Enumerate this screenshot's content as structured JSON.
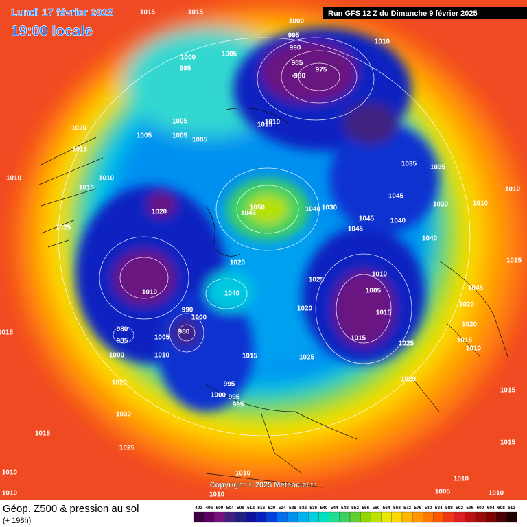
{
  "header": {
    "date": "Lundi 17 février 2025",
    "time": "19:00 locale",
    "run": "Run GFS 12 Z du Dimanche 9 février 2025"
  },
  "copyright": "Copyright © 2025 Meteociel.fr",
  "footer": {
    "title": "Géop. Z500 & pression au sol",
    "lead": "(+ 198h)"
  },
  "scale": {
    "labels": [
      "492",
      "496",
      "500",
      "504",
      "508",
      "512",
      "516",
      "520",
      "524",
      "528",
      "532",
      "536",
      "540",
      "544",
      "548",
      "552",
      "556",
      "560",
      "564",
      "568",
      "572",
      "576",
      "580",
      "584",
      "588",
      "592",
      "596",
      "600",
      "604",
      "608",
      "612"
    ],
    "colors": [
      "#3a0040",
      "#5a0060",
      "#7a1080",
      "#402080",
      "#202080",
      "#1010a0",
      "#0020c0",
      "#0040e0",
      "#0070f0",
      "#0090f0",
      "#00b0f0",
      "#00d0e0",
      "#00e0c0",
      "#20e090",
      "#40d060",
      "#60d030",
      "#90d800",
      "#c0e000",
      "#e8e800",
      "#ffd800",
      "#ffb800",
      "#ff9800",
      "#ff7800",
      "#ff5800",
      "#f03818",
      "#e02020",
      "#c01010",
      "#a00808",
      "#800000",
      "#500000",
      "#200000"
    ]
  },
  "isobar_labels": [
    "1015",
    "1015",
    "1000",
    "995",
    "990",
    "1010",
    "1000",
    "1005",
    "995",
    "985",
    "975",
    "-980",
    "1005",
    "1015",
    "1010",
    "1020",
    "1005",
    "1005",
    "1005",
    "1015",
    "1035",
    "1035",
    "1010",
    "1010",
    "1010",
    "1045",
    "1030",
    "1010",
    "1010",
    "1050",
    "1045",
    "1040",
    "1030",
    "1020",
    "1045",
    "1040",
    "1045",
    "1025",
    "1040",
    "1020",
    "1010",
    "1025",
    "1005",
    "1010",
    "1040",
    "1020",
    "1015",
    "990",
    "1000",
    "980",
    "980",
    "985",
    "1000",
    "1005",
    "1015",
    "1025",
    "1010",
    "1015",
    "1025",
    "1020",
    "1020",
    "1015",
    "1010",
    "1015",
    "995",
    "1020",
    "1020",
    "1000",
    "995",
    "995",
    "1030",
    "1015",
    "1015",
    "1025",
    "1015",
    "1010",
    "1010",
    "1010",
    "1010",
    "1010",
    "1005",
    "1010",
    "1015",
    "1045"
  ]
}
